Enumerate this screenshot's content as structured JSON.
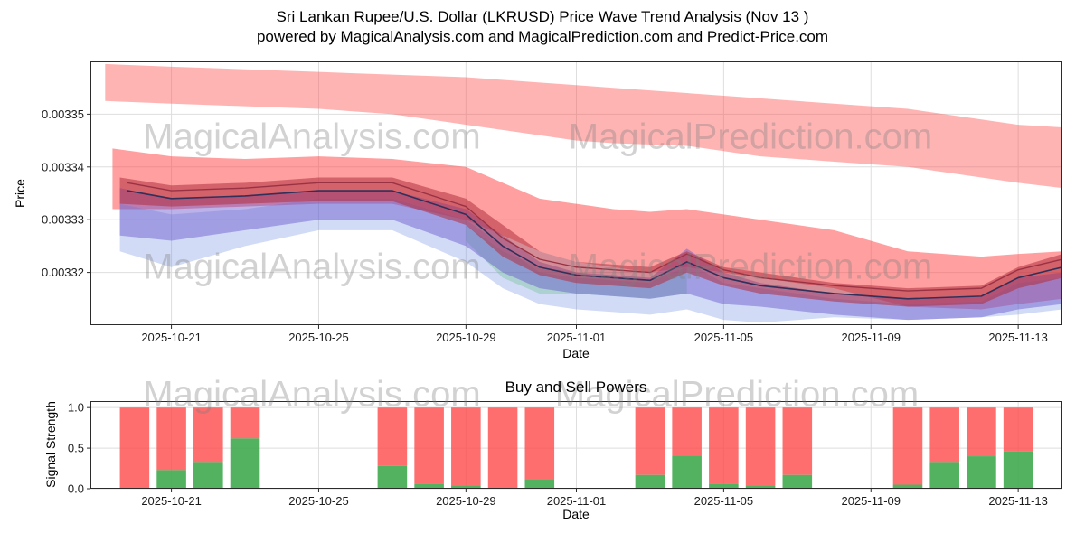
{
  "figure": {
    "title_line1": "Sri Lankan Rupee/U.S. Dollar (LKRUSD) Price Wave Trend Analysis (Nov 13 )",
    "title_line2": "powered by MagicalAnalysis.com and MagicalPrediction.com and Predict-Price.com"
  },
  "watermarks": {
    "analysis": "MagicalAnalysis.com",
    "prediction": "MagicalPrediction.com"
  },
  "chart_data": [
    {
      "type": "area",
      "name": "price-wave-trend",
      "ylabel": "Price",
      "xlabel": "Date",
      "xlim": [
        -0.2,
        26.2
      ],
      "ylim": [
        0.00331,
        0.00336
      ],
      "grid": true,
      "x_ticks": [
        {
          "day": 2,
          "label": "2025-10-21"
        },
        {
          "day": 6,
          "label": "2025-10-25"
        },
        {
          "day": 10,
          "label": "2025-10-29"
        },
        {
          "day": 13,
          "label": "2025-11-01"
        },
        {
          "day": 17,
          "label": "2025-11-05"
        },
        {
          "day": 21,
          "label": "2025-11-09"
        },
        {
          "day": 25,
          "label": "2025-11-13"
        }
      ],
      "y_ticks": [
        {
          "value": 0.00332,
          "label": "0.00332"
        },
        {
          "value": 0.00333,
          "label": "0.00333"
        },
        {
          "value": 0.00334,
          "label": "0.00334"
        },
        {
          "value": 0.00335,
          "label": "0.00335"
        }
      ],
      "bands": [
        {
          "name": "upper-forecast-band",
          "color": "#ff4d4d",
          "opacity": 0.42,
          "days": [
            0.2,
            2,
            4,
            6,
            8,
            10,
            12,
            13,
            14,
            16,
            18,
            20,
            22,
            24,
            25,
            26.2
          ],
          "top": [
            0.0033595,
            0.003359,
            0.0033585,
            0.003358,
            0.0033575,
            0.003357,
            0.003356,
            0.0033555,
            0.003355,
            0.003354,
            0.003353,
            0.003352,
            0.003351,
            0.003349,
            0.003348,
            0.0033475
          ],
          "bottom": [
            0.0033525,
            0.003352,
            0.0033515,
            0.003351,
            0.00335,
            0.003348,
            0.003346,
            0.003345,
            0.0033445,
            0.003344,
            0.003342,
            0.003341,
            0.00334,
            0.003338,
            0.003337,
            0.003336
          ]
        },
        {
          "name": "mid-forecast-band",
          "color": "#ff4040",
          "opacity": 0.5,
          "days": [
            0.4,
            2,
            4,
            6,
            8,
            10,
            11,
            12,
            13,
            14,
            15,
            16,
            17,
            18,
            20,
            22,
            24,
            25,
            26.2
          ],
          "top": [
            0.0033435,
            0.003342,
            0.0033415,
            0.003342,
            0.0033415,
            0.00334,
            0.003337,
            0.003334,
            0.003333,
            0.003332,
            0.0033315,
            0.003332,
            0.003331,
            0.00333,
            0.003328,
            0.003324,
            0.003323,
            0.0033235,
            0.003324
          ],
          "bottom": [
            0.003332,
            0.003332,
            0.0033325,
            0.003333,
            0.003333,
            0.00333,
            0.003327,
            0.003324,
            0.003322,
            0.003321,
            0.00332,
            0.003321,
            0.00332,
            0.003319,
            0.003317,
            0.0033135,
            0.003313,
            0.003314,
            0.003315
          ]
        },
        {
          "name": "blue-band",
          "color": "#6688e0",
          "opacity": 0.3,
          "days": [
            0.6,
            2,
            4,
            6,
            8,
            10,
            11,
            12,
            13,
            14,
            15,
            16,
            17,
            18,
            20,
            22,
            24,
            25,
            26.2
          ],
          "top": [
            0.003333,
            0.003331,
            0.003332,
            0.003334,
            0.003334,
            0.00333,
            0.003325,
            0.00332,
            0.003319,
            0.0033185,
            0.003318,
            0.003322,
            0.003318,
            0.003317,
            0.003315,
            0.003314,
            0.0033145,
            0.003318,
            0.003319
          ],
          "bottom": [
            0.003324,
            0.003321,
            0.003325,
            0.003328,
            0.003328,
            0.003322,
            0.003317,
            0.003314,
            0.003313,
            0.0033125,
            0.003312,
            0.003313,
            0.003311,
            0.0033105,
            0.0033115,
            0.003311,
            0.0033115,
            0.003312,
            0.003313
          ]
        },
        {
          "name": "green-band",
          "color": "#55bb77",
          "opacity": 0.3,
          "days": [
            10,
            11,
            12,
            13,
            14,
            15,
            16
          ],
          "top": [
            0.003329,
            0.003324,
            0.003321,
            0.00332,
            0.003319,
            0.0033185,
            0.003321
          ],
          "bottom": [
            0.003326,
            0.003319,
            0.003316,
            0.003316,
            0.0033155,
            0.003315,
            0.003316
          ]
        },
        {
          "name": "purple-band",
          "color": "#6655cc",
          "opacity": 0.45,
          "days": [
            0.6,
            2,
            4,
            6,
            8,
            10,
            11,
            12,
            13,
            14,
            15,
            16,
            17,
            18,
            20,
            22,
            24,
            25,
            26.2
          ],
          "top": [
            0.003336,
            0.003334,
            0.0033345,
            0.0033355,
            0.0033355,
            0.003332,
            0.003327,
            0.003322,
            0.00332,
            0.0033195,
            0.003319,
            0.0033245,
            0.00332,
            0.003318,
            0.003316,
            0.003315,
            0.0033155,
            0.003319,
            0.00332
          ],
          "bottom": [
            0.003327,
            0.003326,
            0.003328,
            0.00333,
            0.00333,
            0.003325,
            0.00332,
            0.003317,
            0.003316,
            0.0033155,
            0.003315,
            0.003316,
            0.003314,
            0.0033135,
            0.003312,
            0.003311,
            0.0033115,
            0.003313,
            0.003314
          ]
        },
        {
          "name": "core-red-band",
          "color": "#b03040",
          "opacity": 0.55,
          "days": [
            0.6,
            2,
            4,
            6,
            8,
            10,
            11,
            12,
            13,
            14,
            15,
            16,
            17,
            18,
            20,
            22,
            24,
            25,
            26.2
          ],
          "top": [
            0.003338,
            0.0033365,
            0.003337,
            0.003338,
            0.003338,
            0.003334,
            0.003329,
            0.003324,
            0.003322,
            0.0033215,
            0.003321,
            0.003324,
            0.003321,
            0.00332,
            0.003318,
            0.003317,
            0.0033175,
            0.003321,
            0.0033235
          ],
          "bottom": [
            0.003333,
            0.0033325,
            0.003333,
            0.0033335,
            0.0033335,
            0.003329,
            0.003323,
            0.0033195,
            0.003318,
            0.0033175,
            0.003317,
            0.00332,
            0.0033175,
            0.003316,
            0.0033145,
            0.0033135,
            0.003314,
            0.003317,
            0.003319
          ]
        }
      ],
      "lines": [
        {
          "name": "trend-line-red",
          "color": "#993344",
          "width": 1.4,
          "days": [
            0.8,
            2,
            4,
            6,
            8,
            10,
            11,
            12,
            13,
            14,
            15,
            16,
            17,
            18,
            20,
            22,
            24,
            25,
            26.2
          ],
          "values": [
            0.003337,
            0.0033355,
            0.003336,
            0.003337,
            0.003337,
            0.0033325,
            0.0033265,
            0.0033225,
            0.003321,
            0.0033205,
            0.00332,
            0.0033235,
            0.0033205,
            0.003319,
            0.0033175,
            0.0033165,
            0.003317,
            0.0033205,
            0.0033225
          ]
        },
        {
          "name": "trend-line-dark",
          "color": "#30305a",
          "width": 1.6,
          "days": [
            0.8,
            2,
            4,
            6,
            8,
            10,
            11,
            12,
            13,
            14,
            15,
            16,
            17,
            18,
            20,
            22,
            24,
            25,
            26.2
          ],
          "values": [
            0.0033355,
            0.003334,
            0.0033345,
            0.0033355,
            0.0033355,
            0.003331,
            0.003325,
            0.003321,
            0.0033195,
            0.003319,
            0.0033185,
            0.003322,
            0.003319,
            0.0033175,
            0.003316,
            0.003315,
            0.0033155,
            0.003319,
            0.003321
          ]
        }
      ]
    },
    {
      "type": "bar",
      "name": "buy-sell-powers",
      "title": "Buy and Sell Powers",
      "ylabel": "Signal Strength",
      "xlabel": "Date",
      "xlim": [
        -0.2,
        26.2
      ],
      "ylim": [
        0,
        1.08
      ],
      "grid": true,
      "x_ticks": [
        {
          "day": 2,
          "label": "2025-10-21"
        },
        {
          "day": 6,
          "label": "2025-10-25"
        },
        {
          "day": 10,
          "label": "2025-10-29"
        },
        {
          "day": 13,
          "label": "2025-11-01"
        },
        {
          "day": 17,
          "label": "2025-11-05"
        },
        {
          "day": 21,
          "label": "2025-11-09"
        },
        {
          "day": 25,
          "label": "2025-11-13"
        }
      ],
      "y_ticks": [
        {
          "value": 0,
          "label": "0.0"
        },
        {
          "value": 0.5,
          "label": "0.5"
        },
        {
          "value": 1,
          "label": "1.0"
        }
      ],
      "bar_width_days": 0.8,
      "bar_total": 1.0,
      "colors": {
        "buy": "#3faa4f",
        "sell": "#ff4545"
      },
      "bars": [
        {
          "date": "2025-10-20",
          "day": 1,
          "buy": 0.0
        },
        {
          "date": "2025-10-21",
          "day": 2,
          "buy": 0.23
        },
        {
          "date": "2025-10-22",
          "day": 3,
          "buy": 0.33
        },
        {
          "date": "2025-10-23",
          "day": 4,
          "buy": 0.62
        },
        {
          "date": "2025-10-27",
          "day": 8,
          "buy": 0.28
        },
        {
          "date": "2025-10-28",
          "day": 9,
          "buy": 0.06
        },
        {
          "date": "2025-10-29",
          "day": 10,
          "buy": 0.04
        },
        {
          "date": "2025-10-30",
          "day": 11,
          "buy": 0.0
        },
        {
          "date": "2025-10-31",
          "day": 12,
          "buy": 0.12
        },
        {
          "date": "2025-11-03",
          "day": 15,
          "buy": 0.17
        },
        {
          "date": "2025-11-04",
          "day": 16,
          "buy": 0.41
        },
        {
          "date": "2025-11-05",
          "day": 17,
          "buy": 0.06
        },
        {
          "date": "2025-11-06",
          "day": 18,
          "buy": 0.04
        },
        {
          "date": "2025-11-07",
          "day": 19,
          "buy": 0.17
        },
        {
          "date": "2025-11-10",
          "day": 22,
          "buy": 0.05
        },
        {
          "date": "2025-11-11",
          "day": 23,
          "buy": 0.33
        },
        {
          "date": "2025-11-12",
          "day": 24,
          "buy": 0.4
        },
        {
          "date": "2025-11-13",
          "day": 25,
          "buy": 0.46
        }
      ]
    }
  ]
}
